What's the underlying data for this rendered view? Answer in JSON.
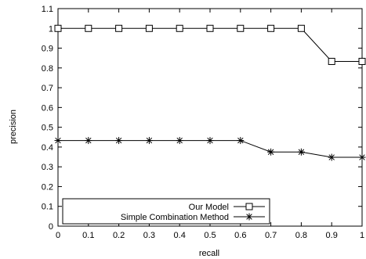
{
  "chart_data": {
    "type": "line",
    "title": "",
    "xlabel": "recall",
    "ylabel": "precision",
    "xlim": [
      0,
      1
    ],
    "ylim": [
      0,
      1.1
    ],
    "x_ticks": [
      "0",
      "0.1",
      "0.2",
      "0.3",
      "0.4",
      "0.5",
      "0.6",
      "0.7",
      "0.8",
      "0.9",
      "1"
    ],
    "y_ticks": [
      "0",
      "0.1",
      "0.2",
      "0.3",
      "0.4",
      "0.5",
      "0.6",
      "0.7",
      "0.8",
      "0.9",
      "1",
      "1.1"
    ],
    "x": [
      0,
      0.1,
      0.2,
      0.3,
      0.4,
      0.5,
      0.6,
      0.7,
      0.8,
      0.9,
      1.0
    ],
    "grid": false,
    "legend_position": "bottom-left",
    "series": [
      {
        "name": "Our Model",
        "marker": "square",
        "color": "#000000",
        "values": [
          1.0,
          1.0,
          1.0,
          1.0,
          1.0,
          1.0,
          1.0,
          1.0,
          1.0,
          0.833,
          0.833
        ]
      },
      {
        "name": "Simple Combination Method",
        "marker": "asterisk",
        "color": "#000000",
        "values": [
          0.433,
          0.433,
          0.433,
          0.433,
          0.433,
          0.433,
          0.433,
          0.375,
          0.375,
          0.348,
          0.348
        ]
      }
    ]
  }
}
